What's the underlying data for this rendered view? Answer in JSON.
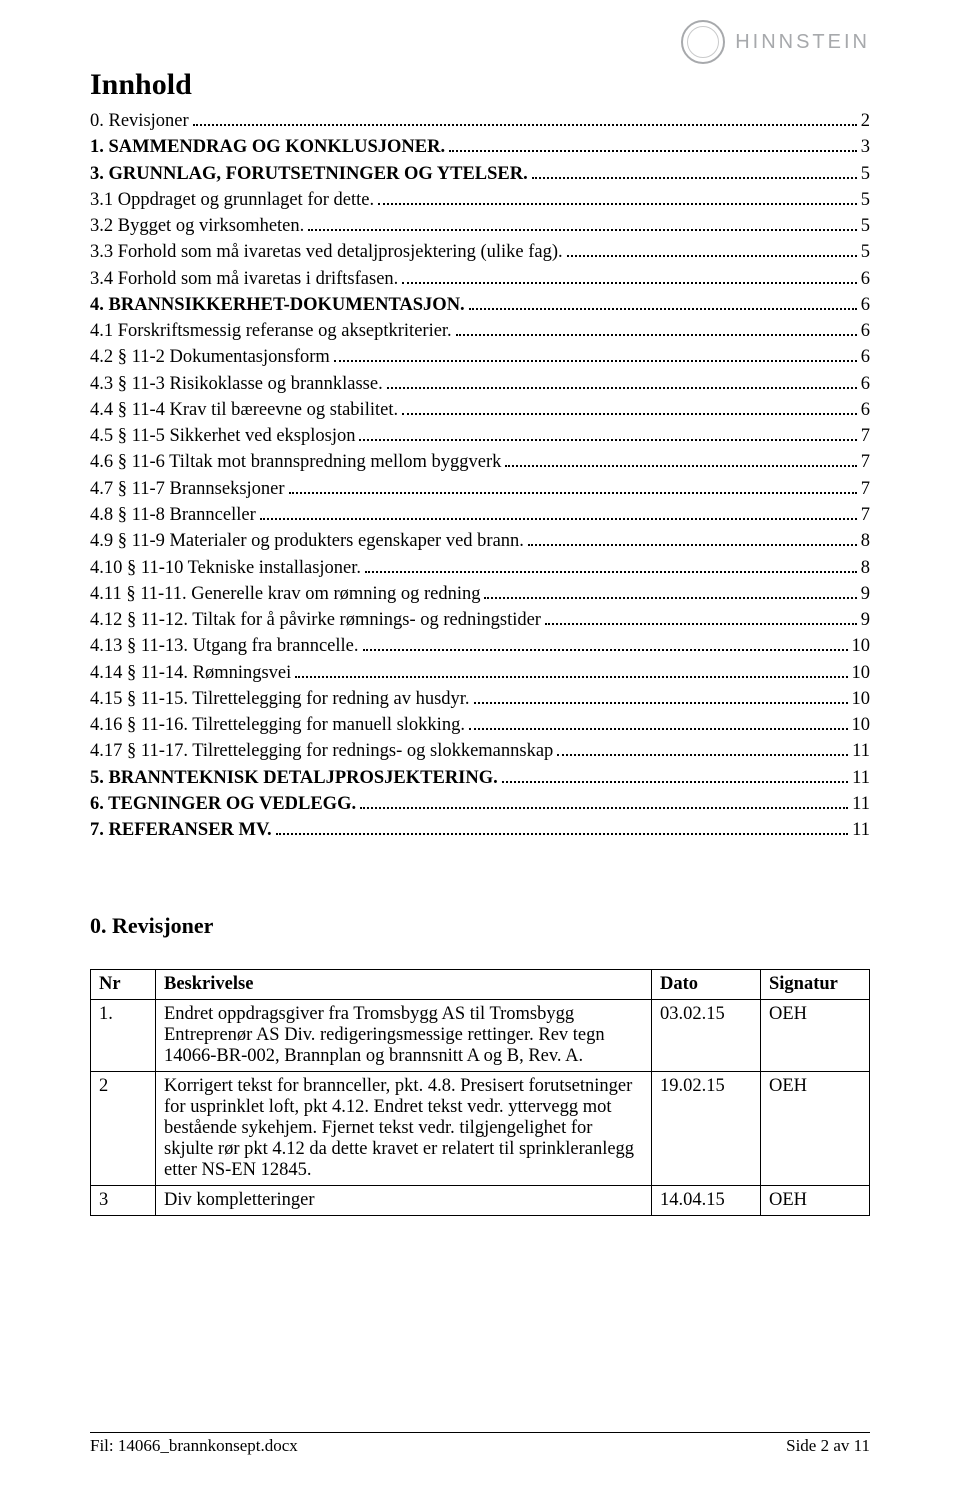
{
  "brand": {
    "name": "HINNSTEIN"
  },
  "title": "Innhold",
  "toc": [
    {
      "label": "0. Revisjoner",
      "page": "2",
      "bold": false
    },
    {
      "label": "1. SAMMENDRAG OG KONKLUSJONER.",
      "page": "3",
      "bold": true
    },
    {
      "label": "3. GRUNNLAG, FORUTSETNINGER OG YTELSER.",
      "page": "5",
      "bold": true
    },
    {
      "label": "3.1 Oppdraget og grunnlaget for dette.",
      "page": "5",
      "bold": false
    },
    {
      "label": "3.2 Bygget og virksomheten.",
      "page": "5",
      "bold": false
    },
    {
      "label": "3.3 Forhold som må ivaretas ved detaljprosjektering (ulike fag).",
      "page": "5",
      "bold": false
    },
    {
      "label": "3.4 Forhold som må ivaretas i driftsfasen.",
      "page": "6",
      "bold": false
    },
    {
      "label": "4. BRANNSIKKERHET-DOKUMENTASJON.",
      "page": "6",
      "bold": true
    },
    {
      "label": "4.1 Forskriftsmessig referanse og akseptkriterier.",
      "page": "6",
      "bold": false
    },
    {
      "label": "4.2 § 11-2 Dokumentasjonsform",
      "page": "6",
      "bold": false
    },
    {
      "label": "4.3 § 11-3 Risikoklasse og brannklasse.",
      "page": "6",
      "bold": false
    },
    {
      "label": "4.4 § 11-4 Krav til bæreevne og stabilitet.",
      "page": "6",
      "bold": false
    },
    {
      "label": "4.5 § 11-5 Sikkerhet ved eksplosjon",
      "page": "7",
      "bold": false
    },
    {
      "label": "4.6 § 11-6 Tiltak mot brannspredning mellom byggverk",
      "page": "7",
      "bold": false
    },
    {
      "label": "4.7 § 11-7 Brannseksjoner",
      "page": "7",
      "bold": false
    },
    {
      "label": "4.8 § 11-8 Brannceller",
      "page": "7",
      "bold": false
    },
    {
      "label": "4.9 § 11-9 Materialer og produkters egenskaper ved brann.",
      "page": "8",
      "bold": false
    },
    {
      "label": "4.10 § 11-10 Tekniske installasjoner.",
      "page": "8",
      "bold": false
    },
    {
      "label": "4.11 § 11-11. Generelle krav om rømning og redning",
      "page": "9",
      "bold": false
    },
    {
      "label": "4.12 § 11-12. Tiltak for å påvirke rømnings- og redningstider",
      "page": "9",
      "bold": false
    },
    {
      "label": "4.13 § 11-13. Utgang fra branncelle.",
      "page": "10",
      "bold": false
    },
    {
      "label": "4.14 § 11-14. Rømningsvei",
      "page": "10",
      "bold": false
    },
    {
      "label": "4.15 § 11-15. Tilrettelegging for redning av husdyr.",
      "page": "10",
      "bold": false
    },
    {
      "label": "4.16 § 11-16. Tilrettelegging for manuell slokking.",
      "page": "10",
      "bold": false
    },
    {
      "label": "4.17 § 11-17. Tilrettelegging for rednings- og slokkemannskap",
      "page": "11",
      "bold": false
    },
    {
      "label": "5. BRANNTEKNISK DETALJPROSJEKTERING.",
      "page": "11",
      "bold": true
    },
    {
      "label": "6. TEGNINGER OG VEDLEGG.",
      "page": "11",
      "bold": true
    },
    {
      "label": "7. REFERANSER MV.",
      "page": "11",
      "bold": true
    }
  ],
  "revisions": {
    "heading": "0. Revisjoner",
    "columns": {
      "nr": "Nr",
      "desc": "Beskrivelse",
      "date": "Dato",
      "sig": "Signatur"
    },
    "rows": [
      {
        "nr": "1.",
        "desc": "Endret oppdragsgiver fra Tromsbygg AS til Tromsbygg Entreprenør AS Div. redigeringsmessige rettinger. Rev tegn 14066-BR-002, Brannplan og brannsnitt A og B, Rev. A.",
        "date": "03.02.15",
        "sig": "OEH"
      },
      {
        "nr": "2",
        "desc": "Korrigert tekst for brannceller, pkt. 4.8. Presisert forutsetninger for usprinklet loft, pkt 4.12. Endret tekst vedr. yttervegg mot bestående sykehjem. Fjernet tekst vedr. tilgjengelighet for skjulte rør pkt 4.12 da dette kravet er relatert til sprinkleranlegg etter NS-EN 12845.",
        "date": "19.02.15",
        "sig": "OEH"
      },
      {
        "nr": "3",
        "desc": "Div kompletteringer",
        "date": "14.04.15",
        "sig": "OEH"
      }
    ]
  },
  "footer": {
    "left": "Fil: 14066_brannkonsept.docx",
    "right": "Side 2 av 11"
  }
}
